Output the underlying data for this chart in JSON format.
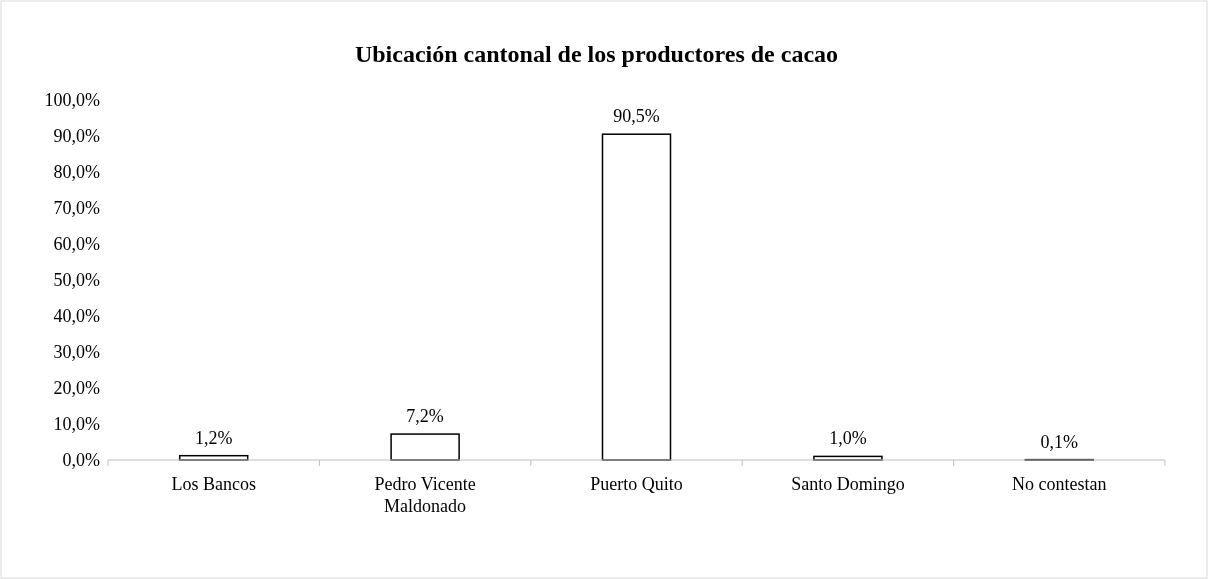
{
  "chart_data": {
    "type": "bar",
    "title": "Ubicación cantonal de los productores de cacao",
    "categories": [
      "Los Bancos",
      "Pedro Vicente Maldonado",
      "Puerto Quito",
      "Santo Domingo",
      "No contestan"
    ],
    "values": [
      1.2,
      7.2,
      90.5,
      1.0,
      0.1
    ],
    "value_labels": [
      "1,2%",
      "7,2%",
      "90,5%",
      "1,0%",
      "0,1%"
    ],
    "color": "#ffffff",
    "ylim": [
      0,
      100
    ],
    "yticks": [
      {
        "value": 0,
        "label": "0,0%"
      },
      {
        "value": 10,
        "label": "10,0%"
      },
      {
        "value": 20,
        "label": "20,0%"
      },
      {
        "value": 30,
        "label": "30,0%"
      },
      {
        "value": 40,
        "label": "40,0%"
      },
      {
        "value": 50,
        "label": "50,0%"
      },
      {
        "value": 60,
        "label": "60,0%"
      },
      {
        "value": 70,
        "label": "70,0%"
      },
      {
        "value": 80,
        "label": "80,0%"
      },
      {
        "value": 90,
        "label": "90,0%"
      },
      {
        "value": 100,
        "label": "100,0%"
      }
    ],
    "grid": false
  }
}
